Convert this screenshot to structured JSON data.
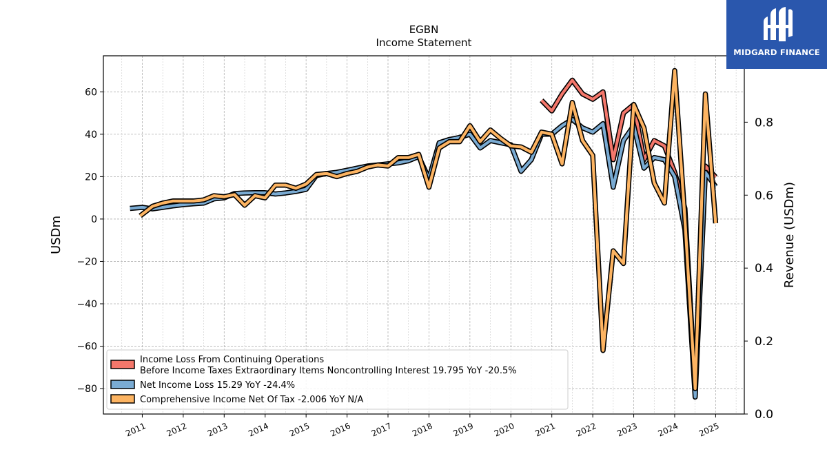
{
  "brand": {
    "name": "MIDGARD FINANCE",
    "background": "#2a57ad"
  },
  "chart_data": {
    "type": "line",
    "title": "EGBN",
    "subtitle": "Income Statement",
    "ylabel": "USDm",
    "y2label": "Revenue (USDm)",
    "ylim": [
      -92,
      77
    ],
    "y2lim": [
      0,
      0.982
    ],
    "xlim": [
      2010.05,
      2025.7
    ],
    "yticks": [
      -80,
      -60,
      -40,
      -20,
      0,
      20,
      40,
      60
    ],
    "y2ticks": [
      0.0,
      0.2,
      0.4,
      0.6,
      0.8
    ],
    "y2tick_labels": [
      "0.0",
      "0.2",
      "0.4",
      "0.6",
      "0.8"
    ],
    "xticks": [
      2011,
      2012,
      2013,
      2014,
      2015,
      2016,
      2017,
      2018,
      2019,
      2020,
      2021,
      2022,
      2023,
      2024,
      2025
    ],
    "xtick_labels": [
      "2011",
      "2012",
      "2013",
      "2014",
      "2015",
      "2016",
      "2017",
      "2018",
      "2019",
      "2020",
      "2021",
      "2022",
      "2023",
      "2024",
      "2025"
    ],
    "grid": true,
    "legend_position": "lower-left",
    "series": [
      {
        "name": "Income Loss From Continuing Operations",
        "name_line2": "Before Income Taxes Extraordinary Items Noncontrolling Interest  19.795 YoY -20.5%",
        "color": "#f4776b",
        "points": [
          [
            2020.75,
            56
          ],
          [
            2021.0,
            51
          ],
          [
            2021.25,
            59
          ],
          [
            2021.5,
            65.5
          ],
          [
            2021.75,
            59
          ],
          [
            2022.0,
            56.5
          ],
          [
            2022.25,
            60
          ],
          [
            2022.5,
            28
          ],
          [
            2022.75,
            50
          ],
          [
            2023.0,
            54
          ],
          [
            2023.25,
            28
          ],
          [
            2023.5,
            37
          ],
          [
            2023.75,
            34.5
          ],
          [
            2024.0,
            22
          ],
          [
            2024.25,
            5
          ],
          [
            2024.5,
            -80
          ],
          [
            2024.75,
            25
          ],
          [
            2025.0,
            19.8
          ]
        ]
      },
      {
        "name": "Net Income Loss  15.29 YoY -24.4%",
        "color": "#7aabd3",
        "points": [
          [
            2010.7,
            5
          ],
          [
            2011.0,
            5.5
          ],
          [
            2011.25,
            4.8
          ],
          [
            2011.5,
            5.5
          ],
          [
            2011.75,
            6.2
          ],
          [
            2012.0,
            6.8
          ],
          [
            2012.25,
            7.2
          ],
          [
            2012.5,
            7.5
          ],
          [
            2012.75,
            9.5
          ],
          [
            2013.0,
            10
          ],
          [
            2013.25,
            12
          ],
          [
            2013.5,
            12.3
          ],
          [
            2013.75,
            12.4
          ],
          [
            2014.0,
            12.4
          ],
          [
            2014.25,
            11.8
          ],
          [
            2014.5,
            12.3
          ],
          [
            2014.75,
            13
          ],
          [
            2015.0,
            14
          ],
          [
            2015.25,
            20.5
          ],
          [
            2015.5,
            21.5
          ],
          [
            2015.75,
            22
          ],
          [
            2016.0,
            23
          ],
          [
            2016.25,
            24
          ],
          [
            2016.5,
            25
          ],
          [
            2016.75,
            25.5
          ],
          [
            2017.0,
            26
          ],
          [
            2017.25,
            26.5
          ],
          [
            2017.5,
            27.5
          ],
          [
            2017.75,
            29.5
          ],
          [
            2018.0,
            19
          ],
          [
            2018.25,
            36
          ],
          [
            2018.5,
            37.5
          ],
          [
            2018.75,
            38.5
          ],
          [
            2019.0,
            40
          ],
          [
            2019.25,
            33.5
          ],
          [
            2019.5,
            37
          ],
          [
            2019.75,
            36
          ],
          [
            2020.0,
            35
          ],
          [
            2020.25,
            22.5
          ],
          [
            2020.5,
            28
          ],
          [
            2020.75,
            40
          ],
          [
            2021.0,
            40
          ],
          [
            2021.25,
            44
          ],
          [
            2021.5,
            47
          ],
          [
            2021.75,
            43
          ],
          [
            2022.0,
            41
          ],
          [
            2022.25,
            45
          ],
          [
            2022.5,
            15
          ],
          [
            2022.75,
            37
          ],
          [
            2023.0,
            44
          ],
          [
            2023.25,
            24
          ],
          [
            2023.5,
            29
          ],
          [
            2023.75,
            28
          ],
          [
            2024.0,
            20
          ],
          [
            2024.25,
            -5
          ],
          [
            2024.5,
            -84
          ],
          [
            2024.75,
            22
          ],
          [
            2025.0,
            15.3
          ]
        ]
      },
      {
        "name": "Comprehensive Income Net Of Tax  -2.006 YoY N/A",
        "color": "#fdb462",
        "points": [
          [
            2010.95,
            1.5
          ],
          [
            2011.25,
            6
          ],
          [
            2011.5,
            7.5
          ],
          [
            2011.75,
            8.5
          ],
          [
            2012.0,
            8.5
          ],
          [
            2012.25,
            8.5
          ],
          [
            2012.5,
            9
          ],
          [
            2012.75,
            11
          ],
          [
            2013.0,
            10.5
          ],
          [
            2013.25,
            11.5
          ],
          [
            2013.5,
            6.5
          ],
          [
            2013.75,
            11
          ],
          [
            2014.0,
            10
          ],
          [
            2014.25,
            16
          ],
          [
            2014.5,
            16
          ],
          [
            2014.75,
            14.5
          ],
          [
            2015.0,
            16.5
          ],
          [
            2015.25,
            21
          ],
          [
            2015.5,
            21.5
          ],
          [
            2015.75,
            20
          ],
          [
            2016.0,
            21.5
          ],
          [
            2016.25,
            22.5
          ],
          [
            2016.5,
            24.5
          ],
          [
            2016.75,
            25.5
          ],
          [
            2017.0,
            25
          ],
          [
            2017.25,
            29
          ],
          [
            2017.5,
            29
          ],
          [
            2017.75,
            30.5
          ],
          [
            2018.0,
            15
          ],
          [
            2018.25,
            33.5
          ],
          [
            2018.5,
            36.5
          ],
          [
            2018.75,
            36.5
          ],
          [
            2019.0,
            44
          ],
          [
            2019.25,
            36.5
          ],
          [
            2019.5,
            42
          ],
          [
            2019.75,
            38
          ],
          [
            2020.0,
            34.5
          ],
          [
            2020.25,
            34
          ],
          [
            2020.5,
            31.5
          ],
          [
            2020.75,
            41
          ],
          [
            2021.0,
            40
          ],
          [
            2021.25,
            26
          ],
          [
            2021.5,
            55
          ],
          [
            2021.75,
            37
          ],
          [
            2022.0,
            30
          ],
          [
            2022.25,
            -62
          ],
          [
            2022.5,
            -15
          ],
          [
            2022.75,
            -21
          ],
          [
            2023.0,
            54
          ],
          [
            2023.25,
            43
          ],
          [
            2023.5,
            17
          ],
          [
            2023.75,
            7.5
          ],
          [
            2024.0,
            70
          ],
          [
            2024.25,
            0
          ],
          [
            2024.5,
            -80
          ],
          [
            2024.75,
            59
          ],
          [
            2025.0,
            -2
          ]
        ]
      }
    ]
  }
}
